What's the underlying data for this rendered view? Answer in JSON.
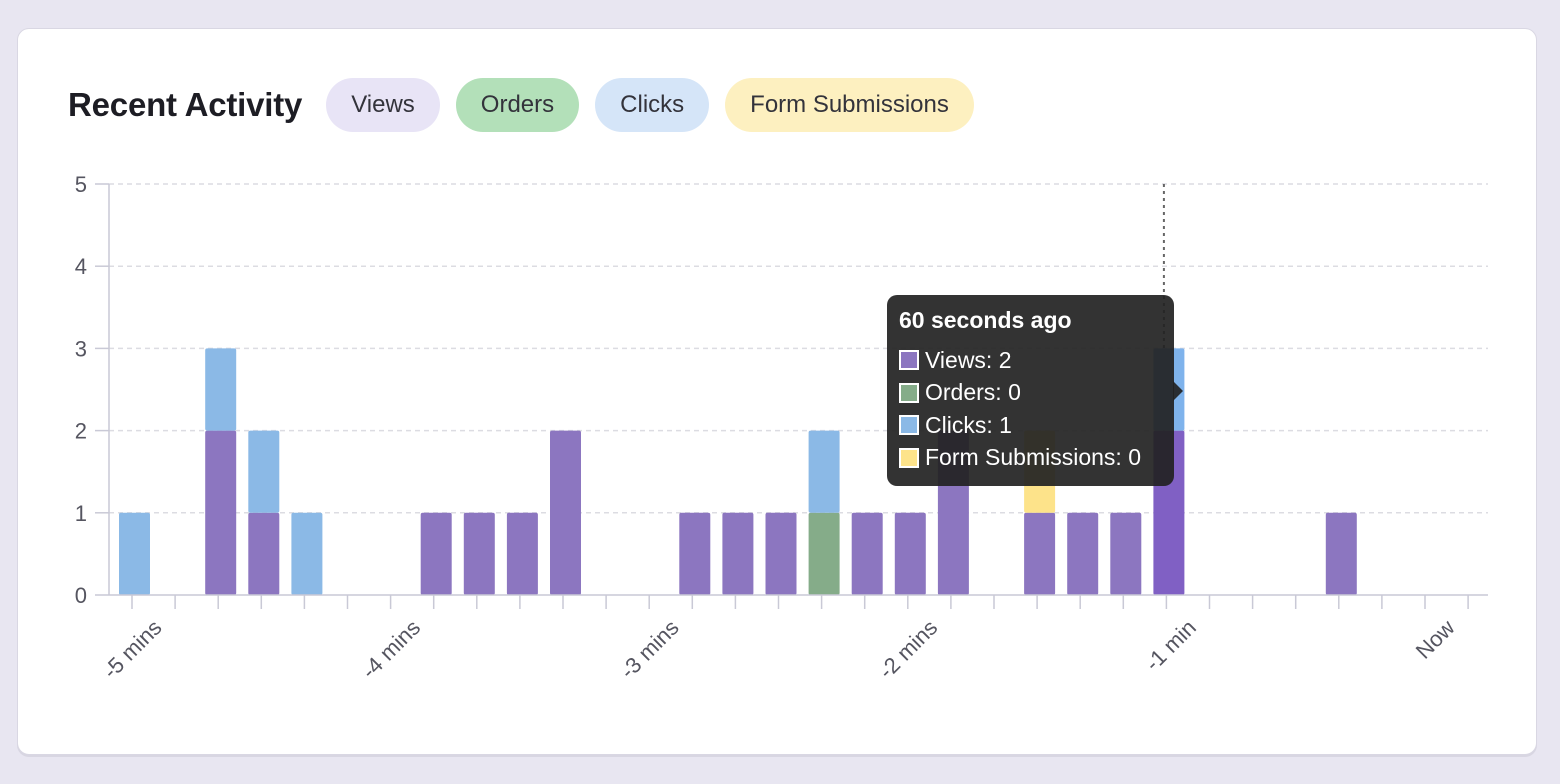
{
  "header": {
    "title": "Recent Activity",
    "filters": [
      {
        "label": "Views",
        "bg": "#e8e4f6"
      },
      {
        "label": "Orders",
        "bg": "#b3e0b9"
      },
      {
        "label": "Clicks",
        "bg": "#d5e5f8"
      },
      {
        "label": "Form Submissions",
        "bg": "#fdf0c0"
      }
    ]
  },
  "colors": {
    "views": "#8c76c0",
    "orders": "#85ac89",
    "clicks": "#8bb9e6",
    "forms": "#fde38a",
    "grid": "#dcdce2",
    "axis": "#c9c9d6"
  },
  "tooltip": {
    "title": "60 seconds ago",
    "rows": [
      {
        "label": "Views: 2",
        "color": "#8c76c0"
      },
      {
        "label": "Orders: 0",
        "color": "#85ac89"
      },
      {
        "label": "Clicks: 1",
        "color": "#8bb9e6"
      },
      {
        "label": "Form Submissions: 0",
        "color": "#fde38a"
      }
    ]
  },
  "chart_data": {
    "type": "bar",
    "stacked": true,
    "ylim": [
      0,
      5
    ],
    "yticks": [
      "0",
      "1",
      "2",
      "3",
      "4",
      "5"
    ],
    "xtick_labels": [
      "-5 mins",
      "-4 mins",
      "-3 mins",
      "-2 mins",
      "-1 min",
      "Now"
    ],
    "grid": true,
    "highlight_index": 24,
    "series": [
      {
        "name": "Views",
        "values": [
          0,
          0,
          2,
          1,
          0,
          0,
          0,
          1,
          1,
          1,
          2,
          0,
          0,
          1,
          1,
          1,
          0,
          1,
          1,
          2,
          0,
          1,
          1,
          1,
          2,
          0,
          0,
          0,
          1,
          0,
          0
        ]
      },
      {
        "name": "Orders",
        "values": [
          0,
          0,
          0,
          0,
          0,
          0,
          0,
          0,
          0,
          0,
          0,
          0,
          0,
          0,
          0,
          0,
          1,
          0,
          0,
          0,
          0,
          0,
          0,
          0,
          0,
          0,
          0,
          0,
          0,
          0,
          0
        ]
      },
      {
        "name": "Clicks",
        "values": [
          1,
          0,
          1,
          1,
          1,
          0,
          0,
          0,
          0,
          0,
          0,
          0,
          0,
          0,
          0,
          0,
          1,
          0,
          0,
          0,
          0,
          0,
          0,
          0,
          1,
          0,
          0,
          0,
          0,
          0,
          0
        ]
      },
      {
        "name": "Form Submissions",
        "values": [
          0,
          0,
          0,
          0,
          0,
          0,
          0,
          0,
          0,
          0,
          0,
          0,
          0,
          0,
          0,
          0,
          0,
          0,
          0,
          0,
          0,
          1,
          0,
          0,
          0,
          0,
          0,
          0,
          0,
          0,
          0
        ]
      }
    ]
  }
}
